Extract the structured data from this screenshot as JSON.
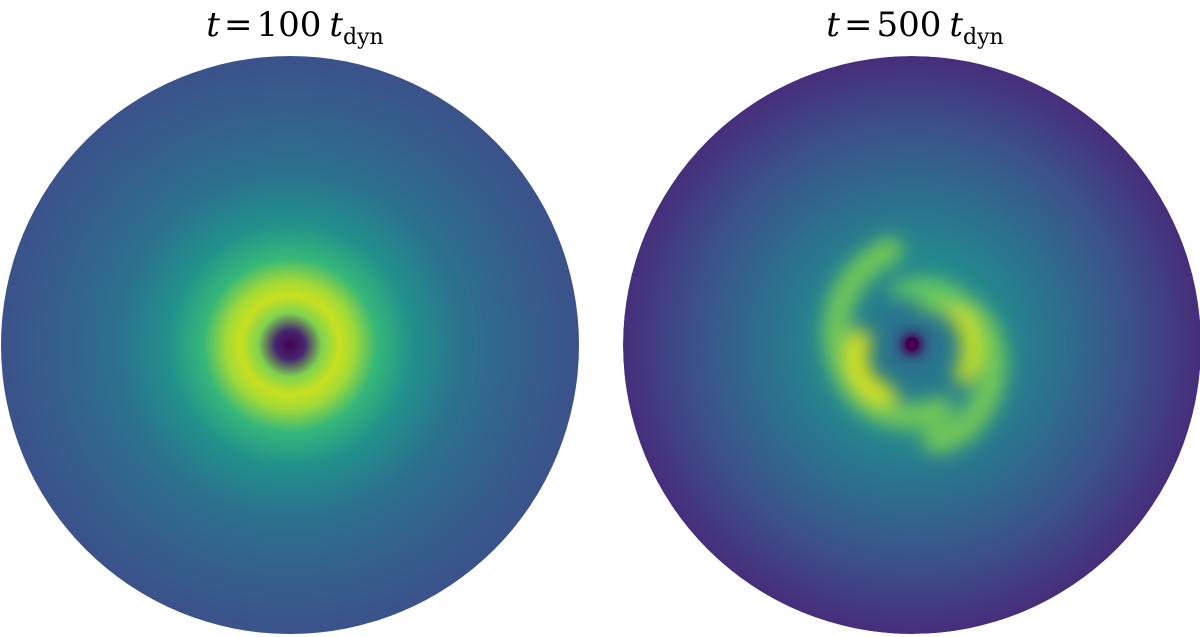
{
  "panels": [
    {
      "title": {
        "variable": "t",
        "relation": "=",
        "number": "100",
        "unit": "t",
        "unit_subscript": "dyn"
      }
    },
    {
      "title": {
        "variable": "t",
        "relation": "=",
        "number": "500",
        "unit": "t",
        "unit_subscript": "dyn"
      }
    }
  ]
}
